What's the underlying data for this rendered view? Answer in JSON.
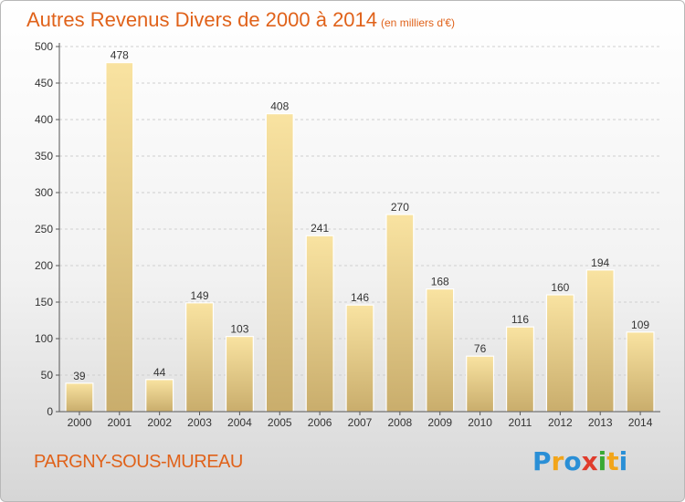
{
  "title": "Autres Revenus Divers de 2000 à 2014",
  "unit_note": "(en milliers d'€)",
  "place_name": "PARGNY-SOUS-MUREAU",
  "logo": {
    "letters": [
      "P",
      "r",
      "o",
      "x",
      "i",
      "t",
      "i"
    ],
    "colors": [
      "#2a8fd6",
      "#f2a51a",
      "#2a8fd6",
      "#e03c2c",
      "#39a935",
      "#f2a51a",
      "#2a8fd6"
    ]
  },
  "colors": {
    "accent": "#e0621a",
    "bar_light": "#f9e3a1",
    "bar_dark": "#c9ad6c"
  },
  "chart_data": {
    "type": "bar",
    "categories": [
      "2000",
      "2001",
      "2002",
      "2003",
      "2004",
      "2005",
      "2006",
      "2007",
      "2008",
      "2009",
      "2010",
      "2011",
      "2012",
      "2013",
      "2014"
    ],
    "values": [
      39,
      478,
      44,
      149,
      103,
      408,
      241,
      146,
      270,
      168,
      76,
      116,
      160,
      194,
      109
    ],
    "yticks": [
      0,
      50,
      100,
      150,
      200,
      250,
      300,
      350,
      400,
      450,
      500
    ],
    "ylim": [
      0,
      500
    ],
    "grid": true,
    "xlabel": "",
    "ylabel": ""
  }
}
